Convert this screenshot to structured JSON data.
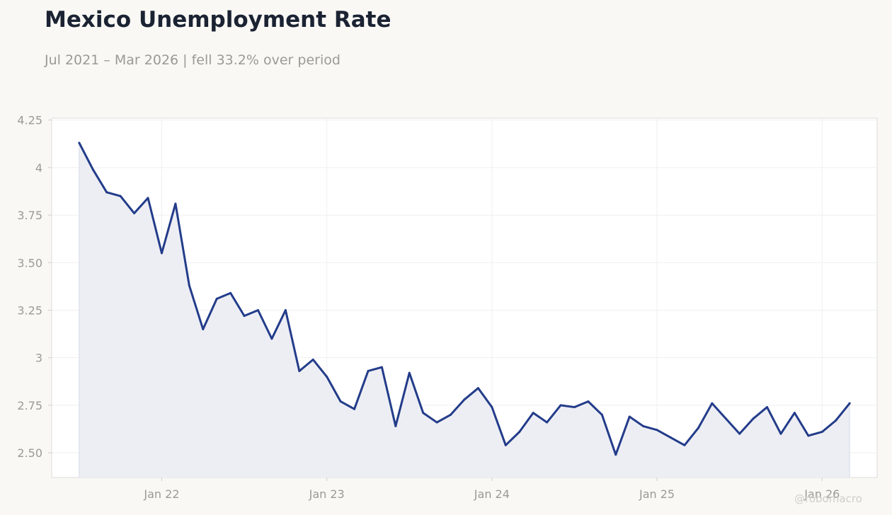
{
  "title": "Mexico Unemployment Rate",
  "subtitle": "Jul 2021 – Mar 2026 | fell 33.2% over period",
  "watermark": "@robomacro",
  "colors": {
    "line": "#233c8a",
    "area_fill": "#edeef4",
    "grid": "#efefef",
    "axis_text": "#9a9a96",
    "background": "#f9f8f5",
    "plot_background": "#ffffff",
    "plot_border": "#dddddb"
  },
  "chart_data": {
    "type": "area",
    "title": "Mexico Unemployment Rate",
    "subtitle": "Jul 2021 – Mar 2026 | fell 33.2% over period",
    "xlabel": "",
    "ylabel": "",
    "x_range": [
      "2021-05",
      "2026-05"
    ],
    "ylim": [
      2.37,
      4.26
    ],
    "grid": true,
    "legend": "none",
    "y_ticks": [
      {
        "value": 2.5,
        "label": "2.50"
      },
      {
        "value": 2.75,
        "label": "2.75"
      },
      {
        "value": 3.0,
        "label": "3"
      },
      {
        "value": 3.25,
        "label": "3.25"
      },
      {
        "value": 3.5,
        "label": "3.50"
      },
      {
        "value": 3.75,
        "label": "3.75"
      },
      {
        "value": 4.0,
        "label": "4"
      },
      {
        "value": 4.25,
        "label": "4.25"
      }
    ],
    "x_ticks": [
      {
        "date": "2022-01",
        "label": "Jan 22"
      },
      {
        "date": "2023-01",
        "label": "Jan 23"
      },
      {
        "date": "2024-01",
        "label": "Jan 24"
      },
      {
        "date": "2025-01",
        "label": "Jan 25"
      },
      {
        "date": "2026-01",
        "label": "Jan 26"
      }
    ],
    "series": [
      {
        "x": [
          "2021-07",
          "2021-08",
          "2021-09",
          "2021-10",
          "2021-11",
          "2021-12",
          "2022-01",
          "2022-02",
          "2022-03",
          "2022-04",
          "2022-05",
          "2022-06",
          "2022-07",
          "2022-08",
          "2022-09",
          "2022-10",
          "2022-11",
          "2022-12",
          "2023-01",
          "2023-02",
          "2023-03",
          "2023-04",
          "2023-05",
          "2023-06",
          "2023-07",
          "2023-08",
          "2023-09",
          "2023-10",
          "2023-11",
          "2023-12",
          "2024-01",
          "2024-02",
          "2024-03",
          "2024-04",
          "2024-05",
          "2024-06",
          "2024-07",
          "2024-08",
          "2024-09",
          "2024-10",
          "2024-11",
          "2024-12",
          "2025-01",
          "2025-02",
          "2025-03",
          "2025-04",
          "2025-05",
          "2025-06",
          "2025-07",
          "2025-08",
          "2025-09",
          "2025-10",
          "2025-11",
          "2025-12",
          "2026-01",
          "2026-02",
          "2026-03"
        ],
        "values": [
          4.13,
          3.99,
          3.87,
          3.85,
          3.76,
          3.84,
          3.55,
          3.81,
          3.38,
          3.15,
          3.31,
          3.34,
          3.22,
          3.25,
          3.1,
          3.25,
          2.93,
          2.99,
          2.9,
          2.77,
          2.73,
          2.93,
          2.95,
          2.64,
          2.92,
          2.71,
          2.66,
          2.7,
          2.78,
          2.84,
          2.74,
          2.54,
          2.61,
          2.71,
          2.66,
          2.75,
          2.74,
          2.77,
          2.7,
          2.49,
          2.69,
          2.64,
          2.62,
          2.58,
          2.54,
          2.63,
          2.76,
          2.68,
          2.6,
          2.68,
          2.74,
          2.6,
          2.71,
          2.59,
          2.61,
          2.67,
          2.76
        ]
      }
    ]
  }
}
